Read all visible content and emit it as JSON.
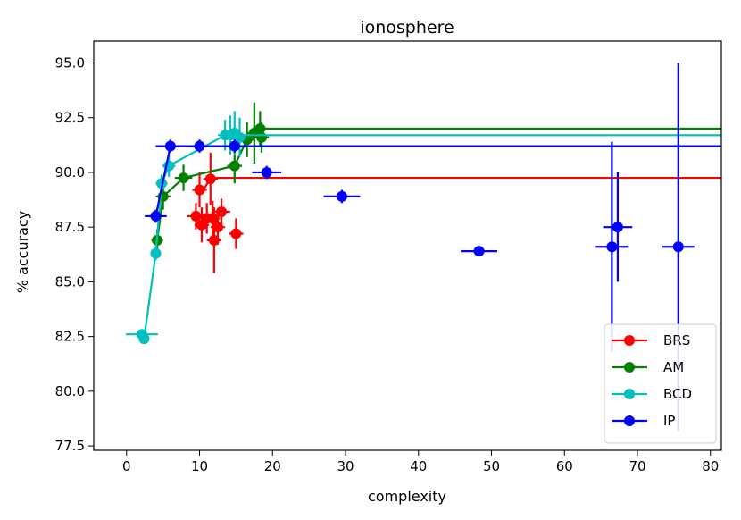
{
  "chart_data": {
    "type": "scatter",
    "title": "ionosphere",
    "xlabel": "complexity",
    "ylabel": "% accuracy",
    "xlim": [
      -4.5,
      81.5
    ],
    "ylim": [
      77.3,
      96.0
    ],
    "xticks": [
      0,
      10,
      20,
      30,
      40,
      50,
      60,
      70,
      80
    ],
    "xtick_labels": [
      "0",
      "10",
      "20",
      "30",
      "40",
      "50",
      "60",
      "70",
      "80"
    ],
    "yticks": [
      77.5,
      80.0,
      82.5,
      85.0,
      87.5,
      90.0,
      92.5,
      95.0
    ],
    "ytick_labels": [
      "77.5",
      "80.0",
      "82.5",
      "85.0",
      "87.5",
      "90.0",
      "92.5",
      "95.0"
    ],
    "grid": false,
    "legend_position": "bottom-right",
    "series": [
      {
        "name": "BRS",
        "color": "#ff0000",
        "frontier": [
          [
            10.2,
            89.0
          ],
          [
            11.5,
            89.75
          ],
          [
            81.5,
            89.75
          ]
        ],
        "points": [
          {
            "x": 9.5,
            "y": 88.0,
            "xerr": 1.2,
            "yerr": 0.6
          },
          {
            "x": 10.0,
            "y": 89.2,
            "xerr": 1.0,
            "yerr": 0.8
          },
          {
            "x": 10.3,
            "y": 87.6,
            "xerr": 1.0,
            "yerr": 0.8
          },
          {
            "x": 11.0,
            "y": 87.9,
            "xerr": 1.2,
            "yerr": 0.7
          },
          {
            "x": 11.5,
            "y": 89.7,
            "xerr": 1.0,
            "yerr": 1.2
          },
          {
            "x": 11.8,
            "y": 87.9,
            "xerr": 1.0,
            "yerr": 0.8
          },
          {
            "x": 12.0,
            "y": 86.9,
            "xerr": 1.0,
            "yerr": 1.5
          },
          {
            "x": 12.5,
            "y": 87.5,
            "xerr": 1.0,
            "yerr": 0.8
          },
          {
            "x": 13.0,
            "y": 88.2,
            "xerr": 1.2,
            "yerr": 0.6
          },
          {
            "x": 15.0,
            "y": 87.2,
            "xerr": 1.0,
            "yerr": 0.7
          }
        ]
      },
      {
        "name": "AM",
        "color": "#008000",
        "frontier": [
          [
            4.2,
            86.9
          ],
          [
            5.0,
            88.9
          ],
          [
            7.8,
            89.75
          ],
          [
            14.8,
            90.3
          ],
          [
            16.5,
            91.5
          ],
          [
            17.5,
            91.8
          ],
          [
            18.3,
            92.0
          ],
          [
            81.5,
            92.0
          ]
        ],
        "points": [
          {
            "x": 4.2,
            "y": 86.9,
            "xerr": 0.8,
            "yerr": 0.5
          },
          {
            "x": 5.0,
            "y": 88.9,
            "xerr": 1.0,
            "yerr": 0.6
          },
          {
            "x": 7.8,
            "y": 89.75,
            "xerr": 1.2,
            "yerr": 0.6
          },
          {
            "x": 14.8,
            "y": 90.3,
            "xerr": 1.0,
            "yerr": 0.8
          },
          {
            "x": 16.5,
            "y": 91.5,
            "xerr": 1.0,
            "yerr": 0.8
          },
          {
            "x": 17.5,
            "y": 91.8,
            "xerr": 1.0,
            "yerr": 1.4
          },
          {
            "x": 18.3,
            "y": 92.0,
            "xerr": 1.0,
            "yerr": 0.8
          },
          {
            "x": 18.5,
            "y": 91.6,
            "xerr": 1.0,
            "yerr": 0.7
          }
        ]
      },
      {
        "name": "BCD",
        "color": "#00bfbf",
        "frontier": [
          [
            2.1,
            82.6
          ],
          [
            2.4,
            82.4
          ],
          [
            4.0,
            86.3
          ],
          [
            4.8,
            89.5
          ],
          [
            5.8,
            90.3
          ],
          [
            13.5,
            91.7
          ],
          [
            14.2,
            91.7
          ],
          [
            81.5,
            91.7
          ]
        ],
        "points": [
          {
            "x": 2.1,
            "y": 82.6,
            "xerr": 2.2,
            "yerr": 0.2
          },
          {
            "x": 2.4,
            "y": 82.4,
            "xerr": 0.6,
            "yerr": 0.2
          },
          {
            "x": 4.0,
            "y": 86.3,
            "xerr": 0.6,
            "yerr": 0.3
          },
          {
            "x": 4.8,
            "y": 89.5,
            "xerr": 0.8,
            "yerr": 0.4
          },
          {
            "x": 5.8,
            "y": 90.3,
            "xerr": 0.9,
            "yerr": 0.5
          },
          {
            "x": 13.5,
            "y": 91.7,
            "xerr": 1.0,
            "yerr": 0.7
          },
          {
            "x": 14.2,
            "y": 91.7,
            "xerr": 1.0,
            "yerr": 0.9
          },
          {
            "x": 14.8,
            "y": 91.8,
            "xerr": 0.8,
            "yerr": 1.0
          },
          {
            "x": 15.5,
            "y": 91.6,
            "xerr": 0.8,
            "yerr": 0.9
          }
        ]
      },
      {
        "name": "IP",
        "color": "#0000ff",
        "frontier": [
          [
            4.0,
            88.0
          ],
          [
            6.0,
            91.2
          ],
          [
            81.5,
            91.2
          ]
        ],
        "points": [
          {
            "x": 4.0,
            "y": 88.0,
            "xerr": 1.5,
            "yerr": 0.3
          },
          {
            "x": 6.0,
            "y": 91.2,
            "xerr": 2.0,
            "yerr": 0.3
          },
          {
            "x": 10.0,
            "y": 91.2,
            "xerr": 1.5,
            "yerr": 0.3
          },
          {
            "x": 14.8,
            "y": 91.2,
            "xerr": 1.5,
            "yerr": 0.3
          },
          {
            "x": 19.2,
            "y": 90.0,
            "xerr": 2.0,
            "yerr": 0.3
          },
          {
            "x": 29.5,
            "y": 88.9,
            "xerr": 2.5,
            "yerr": 0.3
          },
          {
            "x": 48.3,
            "y": 86.4,
            "xerr": 2.5,
            "yerr": 0.2
          },
          {
            "x": 66.5,
            "y": 86.6,
            "xerr": 2.2,
            "yerr": 4.8
          },
          {
            "x": 67.3,
            "y": 87.5,
            "xerr": 2.0,
            "yerr": 2.5
          },
          {
            "x": 75.6,
            "y": 86.6,
            "xerr": 2.2,
            "yerr": 8.4
          }
        ]
      }
    ]
  }
}
